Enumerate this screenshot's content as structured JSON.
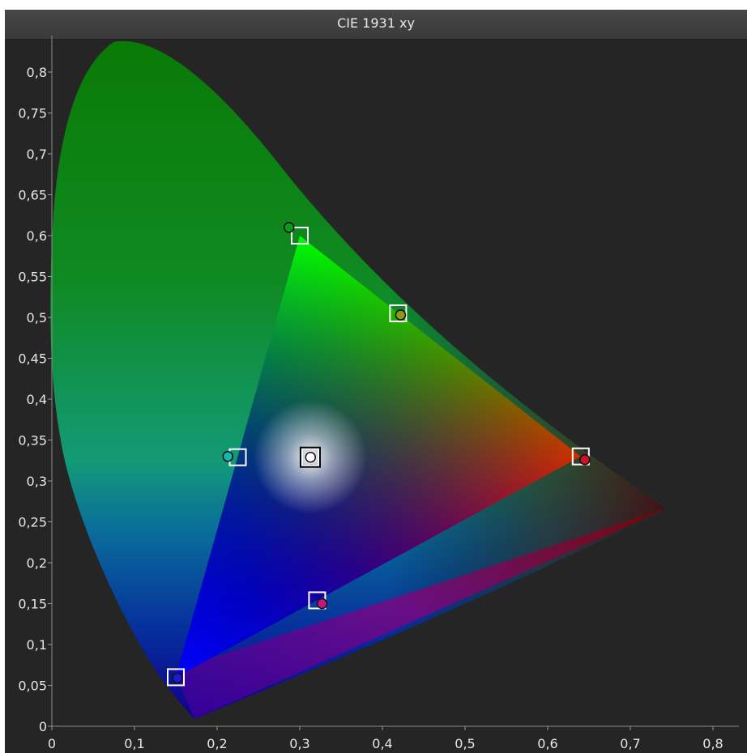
{
  "chart_data": {
    "type": "scatter",
    "title": "CIE 1931 xy",
    "xlabel": "",
    "ylabel": "",
    "xlim": [
      0,
      0.84
    ],
    "ylim": [
      0,
      0.84
    ],
    "x_ticks": [
      "0",
      "0,1",
      "0,2",
      "0,3",
      "0,4",
      "0,5",
      "0,6",
      "0,7",
      "0,8"
    ],
    "y_ticks": [
      "0",
      "0,05",
      "0,1",
      "0,15",
      "0,2",
      "0,25",
      "0,3",
      "0,35",
      "0,4",
      "0,45",
      "0,5",
      "0,55",
      "0,6",
      "0,65",
      "0,7",
      "0,75",
      "0,8"
    ],
    "grid": false,
    "gamut_triangle": [
      [
        0.3,
        0.6
      ],
      [
        0.64,
        0.33
      ],
      [
        0.15,
        0.06
      ]
    ],
    "series": [
      {
        "marker": "square",
        "points": [
          {
            "x": 0.3,
            "y": 0.6
          },
          {
            "x": 0.419,
            "y": 0.505
          },
          {
            "x": 0.64,
            "y": 0.33
          },
          {
            "x": 0.321,
            "y": 0.154
          },
          {
            "x": 0.15,
            "y": 0.06
          },
          {
            "x": 0.225,
            "y": 0.329
          },
          {
            "x": 0.3127,
            "y": 0.329
          }
        ]
      },
      {
        "marker": "circle",
        "points": [
          {
            "x": 0.287,
            "y": 0.61,
            "color": "#0c9a1a"
          },
          {
            "x": 0.422,
            "y": 0.503,
            "color": "#8f9a18"
          },
          {
            "x": 0.645,
            "y": 0.326,
            "color": "#d0102a"
          },
          {
            "x": 0.327,
            "y": 0.15,
            "color": "#c01880"
          },
          {
            "x": 0.152,
            "y": 0.059,
            "color": "#1e1ad0"
          },
          {
            "x": 0.213,
            "y": 0.33,
            "color": "#18b6b0"
          },
          {
            "x": 0.313,
            "y": 0.329,
            "color": "#ffffff"
          }
        ]
      }
    ]
  }
}
